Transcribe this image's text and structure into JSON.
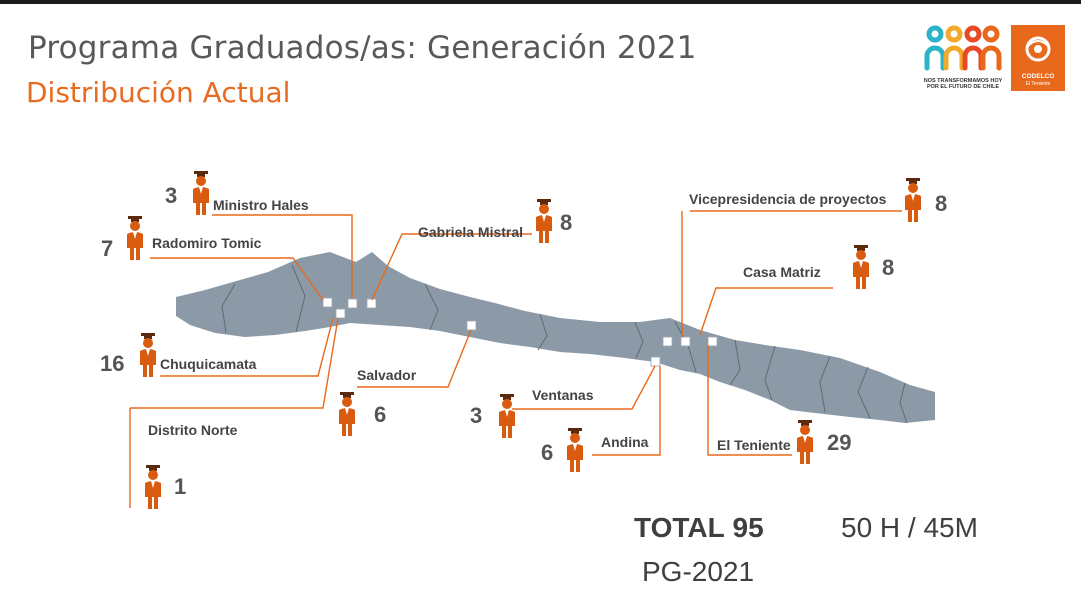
{
  "title": "Programa Graduados/as: Generación 2021",
  "subtitle": "Distribución Actual",
  "logos": {
    "campaign_text": "NOS TRANSFORMAMOS HOY POR EL FUTURO DE CHILE",
    "codelco_name": "CODELCO",
    "codelco_division": "El Teniente"
  },
  "colors": {
    "accent": "#e86b1f",
    "map": "#8c9aa8",
    "text": "#444444"
  },
  "locations": [
    {
      "id": "ministro-hales",
      "label": "Ministro Hales",
      "count": "3"
    },
    {
      "id": "radomiro-tomic",
      "label": "Radomiro Tomic",
      "count": "7"
    },
    {
      "id": "gabriela-mistral",
      "label": "Gabriela Mistral",
      "count": "8"
    },
    {
      "id": "chuquicamata",
      "label": "Chuquicamata",
      "count": "16"
    },
    {
      "id": "salvador",
      "label": "Salvador",
      "count": "6"
    },
    {
      "id": "distrito-norte",
      "label": "Distrito Norte",
      "count": "1"
    },
    {
      "id": "vicepresidencia",
      "label": "Vicepresidencia de proyectos",
      "count": "8"
    },
    {
      "id": "casa-matriz",
      "label": "Casa Matriz",
      "count": "8"
    },
    {
      "id": "ventanas",
      "label": "Ventanas",
      "count": "3"
    },
    {
      "id": "andina",
      "label": "Andina",
      "count": "6"
    },
    {
      "id": "el-teniente",
      "label": "El Teniente",
      "count": "29"
    }
  ],
  "summary": {
    "total_label": "TOTAL",
    "total_value": "95",
    "gender_split": "50 H / 45M",
    "program_code": "PG-2021"
  }
}
